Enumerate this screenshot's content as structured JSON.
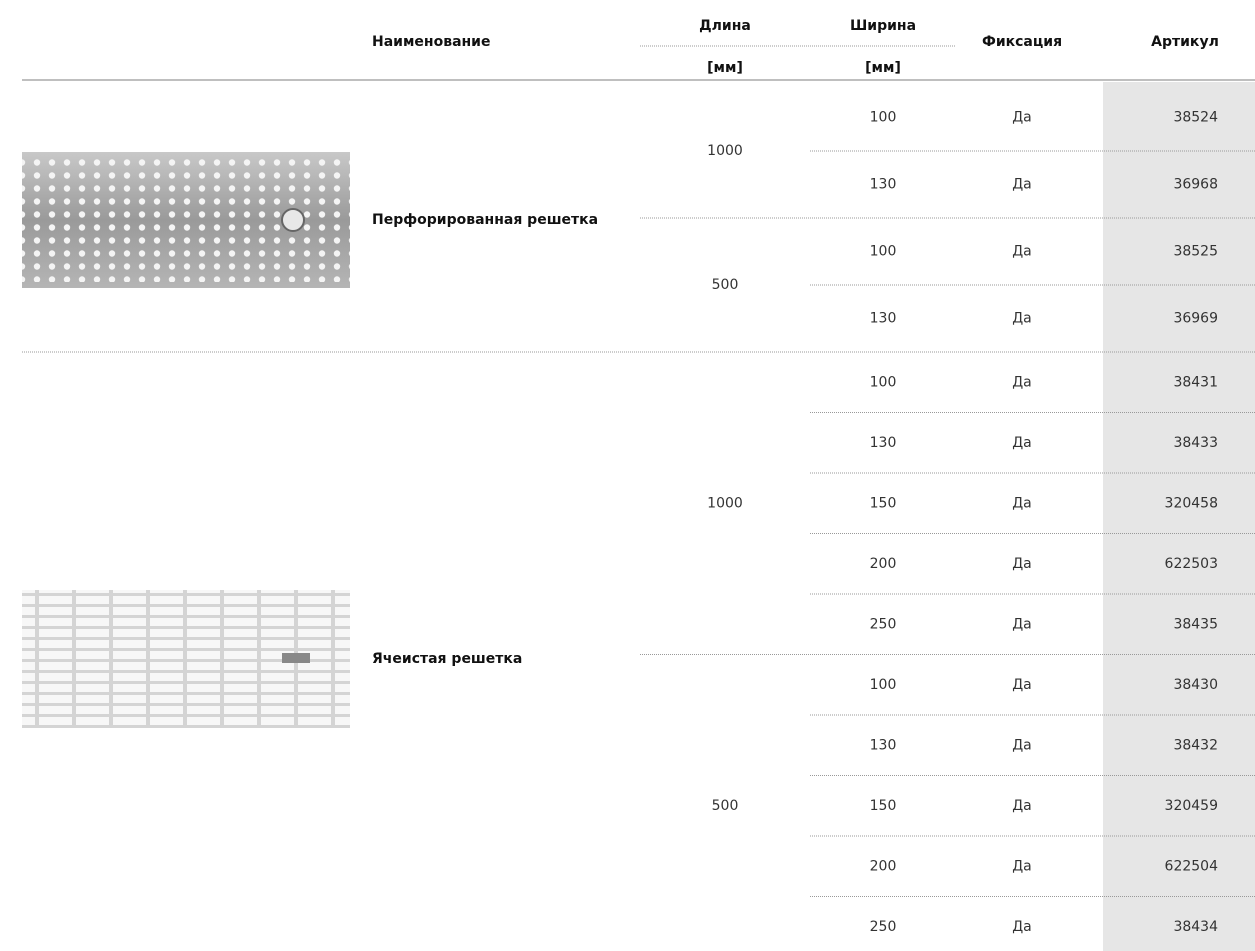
{
  "header": {
    "name": "Наименование",
    "length": "Длина",
    "length_unit": "[мм]",
    "width": "Ширина",
    "width_unit": "[мм]",
    "fixation": "Фиксация",
    "article": "Артикул"
  },
  "groups": [
    {
      "name": "Перфорированная решетка",
      "lengths": [
        {
          "value": 1000,
          "rows": [
            {
              "width": 100,
              "fixation": "Да",
              "article": 38524
            },
            {
              "width": 130,
              "fixation": "Да",
              "article": 36968
            }
          ]
        },
        {
          "value": 500,
          "rows": [
            {
              "width": 100,
              "fixation": "Да",
              "article": 38525
            },
            {
              "width": 130,
              "fixation": "Да",
              "article": 36969
            }
          ]
        }
      ]
    },
    {
      "name": "Ячеистая решетка",
      "lengths": [
        {
          "value": 1000,
          "rows": [
            {
              "width": 100,
              "fixation": "Да",
              "article": 38431
            },
            {
              "width": 130,
              "fixation": "Да",
              "article": 38433
            },
            {
              "width": 150,
              "fixation": "Да",
              "article": 320458
            },
            {
              "width": 200,
              "fixation": "Да",
              "article": 622503
            },
            {
              "width": 250,
              "fixation": "Да",
              "article": 38435
            }
          ]
        },
        {
          "value": 500,
          "rows": [
            {
              "width": 100,
              "fixation": "Да",
              "article": 38430
            },
            {
              "width": 130,
              "fixation": "Да",
              "article": 38432
            },
            {
              "width": 150,
              "fixation": "Да",
              "article": 320459
            },
            {
              "width": 200,
              "fixation": "Да",
              "article": 622504
            },
            {
              "width": 250,
              "fixation": "Да",
              "article": 38434
            }
          ]
        }
      ]
    }
  ]
}
